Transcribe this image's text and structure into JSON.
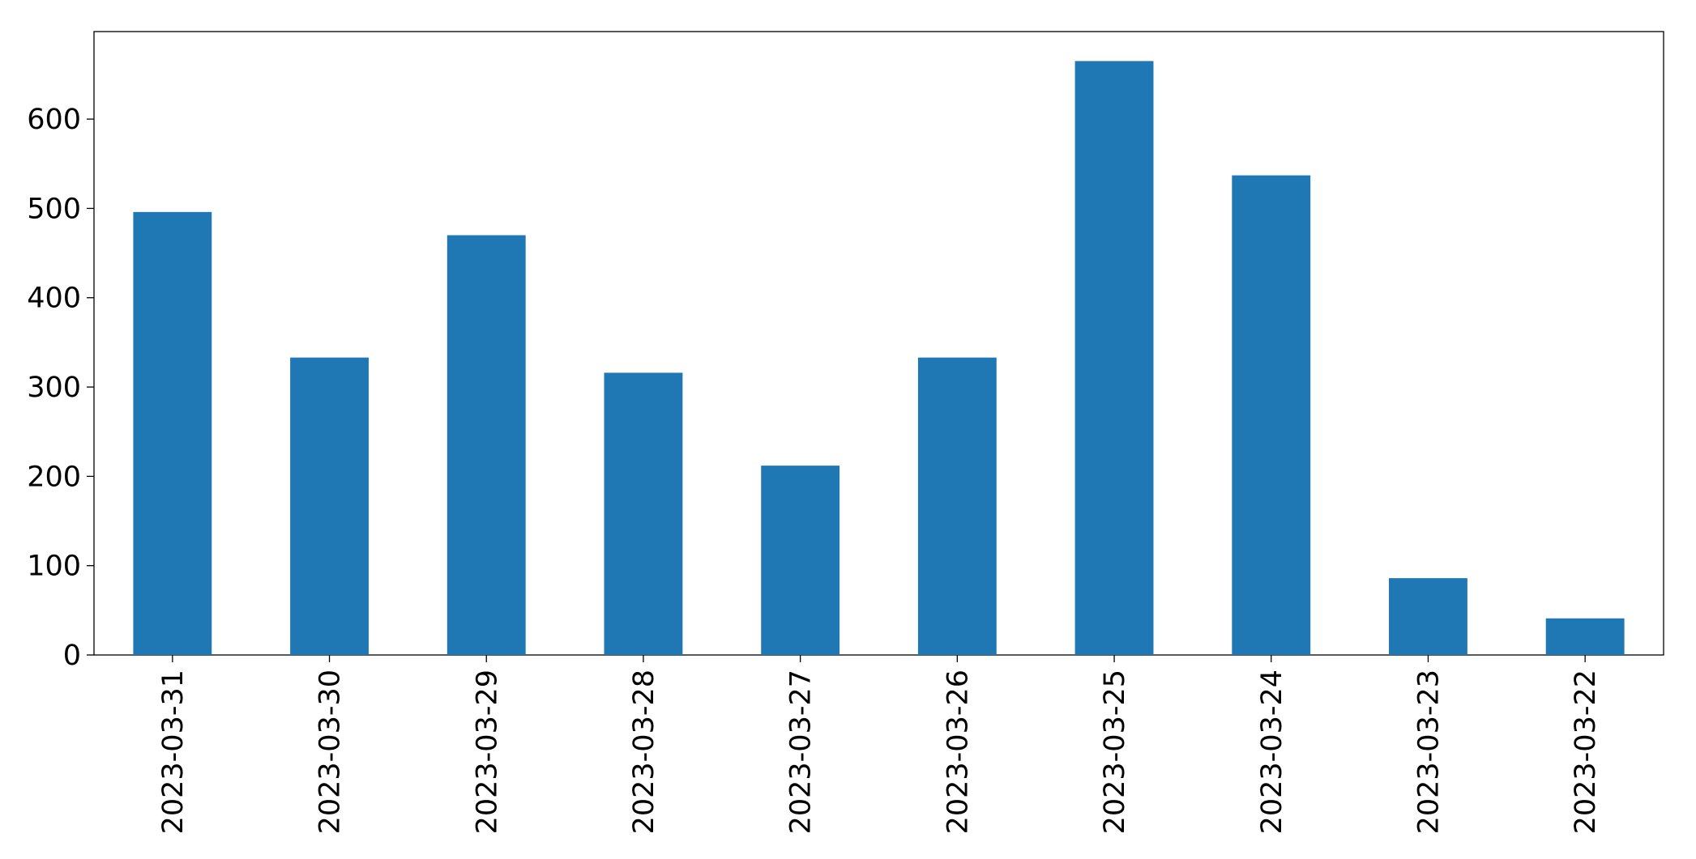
{
  "chart_data": {
    "type": "bar",
    "categories": [
      "2023-03-31",
      "2023-03-30",
      "2023-03-29",
      "2023-03-28",
      "2023-03-27",
      "2023-03-26",
      "2023-03-25",
      "2023-03-24",
      "2023-03-23",
      "2023-03-22"
    ],
    "values": [
      496,
      333,
      470,
      316,
      212,
      333,
      665,
      537,
      86,
      41
    ],
    "color": "#1f77b4",
    "ylim": [
      0,
      698
    ],
    "yticks": [
      0,
      100,
      200,
      300,
      400,
      500,
      600
    ],
    "grid": false
  }
}
